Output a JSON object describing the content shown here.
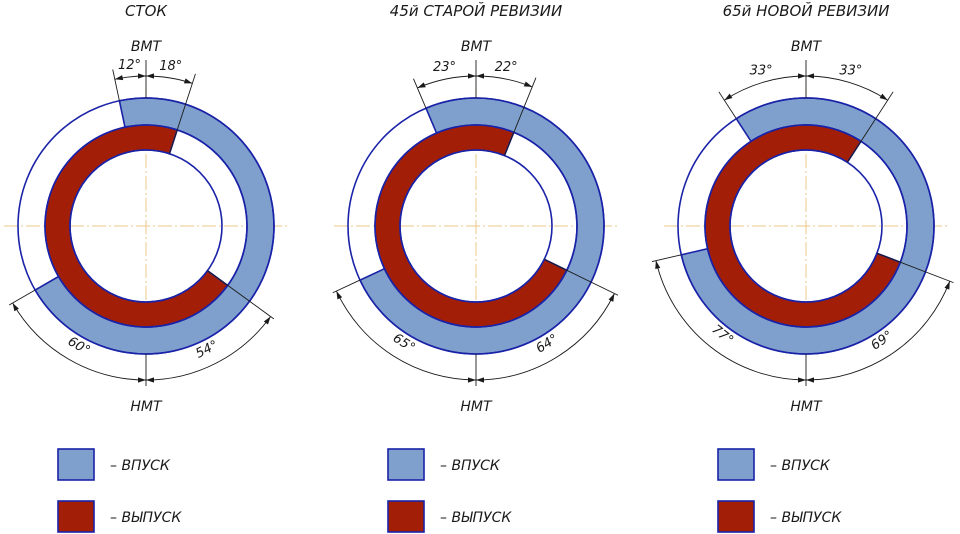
{
  "colors": {
    "intake": "#7fa0cc",
    "exhaust": "#a21e06",
    "outline": "#1a23a8",
    "axis": "#e9c98a",
    "text": "#1a1a1a"
  },
  "labels": {
    "tdc": "ВМТ",
    "bdc": "НМТ"
  },
  "legend": {
    "intake": "– ВПУСК",
    "exhaust": "– ВЫПУСК"
  },
  "diagrams": [
    {
      "title": "СТОК",
      "intake_open_btdc": 12,
      "intake_close_abdc": 60,
      "exhaust_open_bbdc": 54,
      "exhaust_close_atdc": 18,
      "label_io": "12°",
      "label_ec": "18°",
      "label_ic": "60°",
      "label_eo": "54°"
    },
    {
      "title": "45й СТАРОЙ РЕВИЗИИ",
      "intake_open_btdc": 23,
      "intake_close_abdc": 65,
      "exhaust_open_bbdc": 64,
      "exhaust_close_atdc": 22,
      "label_io": "23°",
      "label_ec": "22°",
      "label_ic": "65°",
      "label_eo": "64°"
    },
    {
      "title": "65й НОВОЙ РЕВИЗИИ",
      "intake_open_btdc": 33,
      "intake_close_abdc": 77,
      "exhaust_open_bbdc": 69,
      "exhaust_close_atdc": 33,
      "label_io": "33°",
      "label_ec": "33°",
      "label_ic": "77°",
      "label_eo": "69°"
    }
  ]
}
